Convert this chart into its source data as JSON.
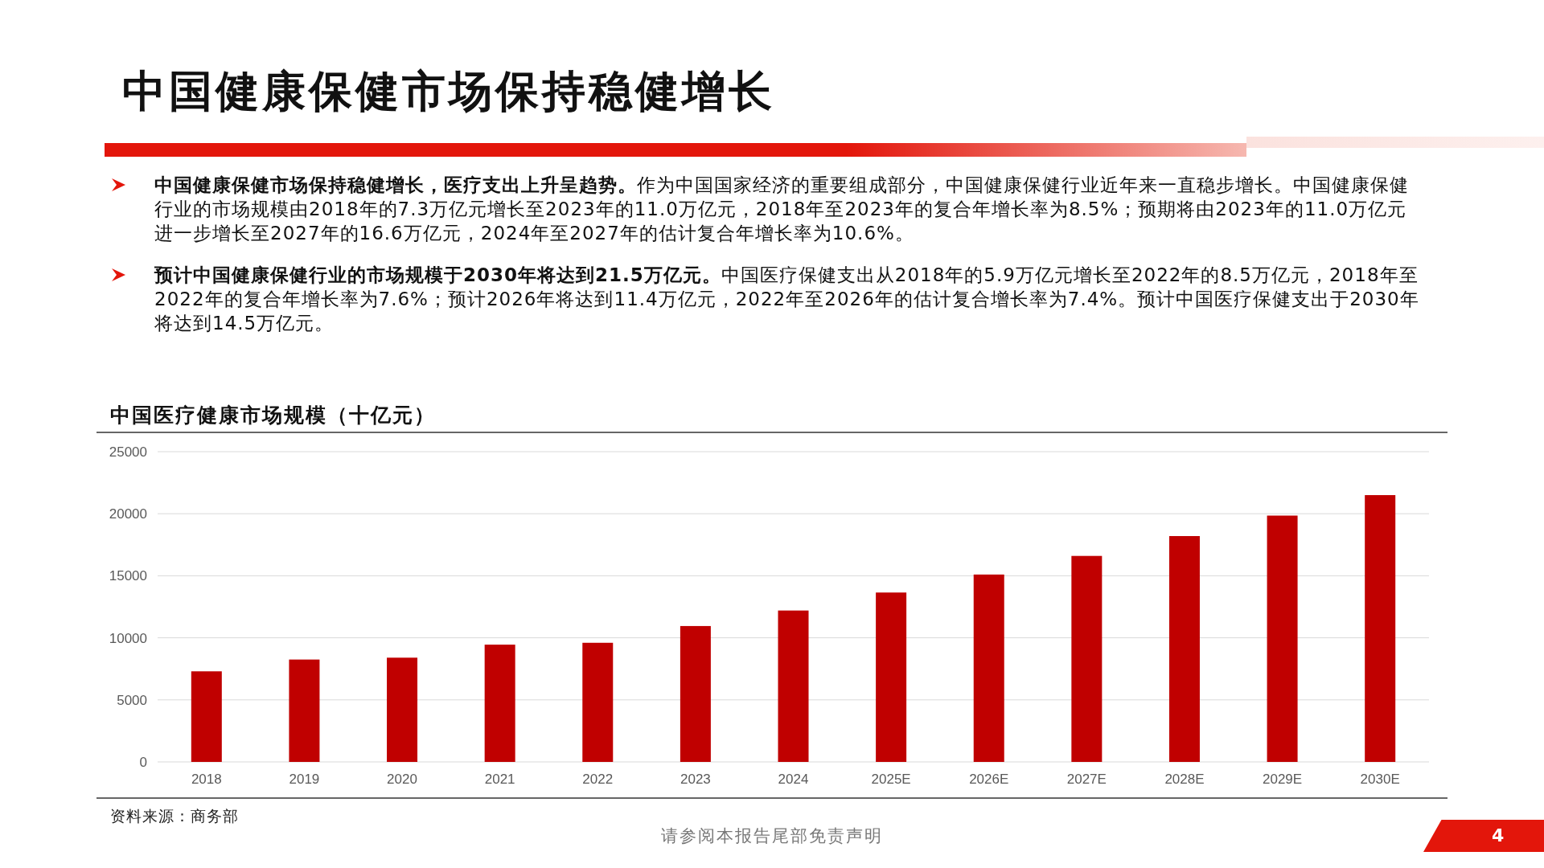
{
  "chart_data": {
    "type": "bar",
    "title": "中国健康保健市场保持稳健增长",
    "subtitle": "中国医疗健康市场规模（十亿元）",
    "categories": [
      "2018",
      "2019",
      "2020",
      "2021",
      "2022",
      "2023",
      "2024",
      "2025E",
      "2026E",
      "2027E",
      "2028E",
      "2029E",
      "2030E"
    ],
    "values": [
      7300,
      8250,
      8400,
      9450,
      9600,
      10950,
      12200,
      13650,
      15100,
      16600,
      18200,
      19850,
      21500
    ],
    "color": "#c00000",
    "ylim": [
      0,
      25000
    ],
    "yticks": [
      0,
      5000,
      10000,
      15000,
      20000,
      25000
    ],
    "grid": "y",
    "annotations": [
      "**中国健康保健市场保持稳健增长，医疗支出上升呈趋势。**作为中国国家经济的重要组成部分，中国健康保健行业近年来一直稳步增长。中国健康保健行业的市场规模由2018年的7.3万亿元增长至2023年的11.0万亿元，2018年至2023年的复合年增长率为8.5%；预期将由2023年的11.0万亿元进一步增长至2027年的16.6万亿元，2024年至2027年的估计复合年增长率为10.6%。",
      "**预计中国健康保健行业的市场规模于2030年将达到21.5万亿元。**中国医疗保健支出从2018年的5.9万亿元增长至2022年的8.5万亿元，2018年至2022年的复合年增长率为7.6%；预计2026年将达到11.4万亿元，2022年至2026年的估计复合增长率为7.4%。预计中国医疗保健支出于2030年将达到14.5万亿元。",
      "资料来源：商务部",
      "请参阅本报告尾部免责声明",
      "4"
    ]
  }
}
